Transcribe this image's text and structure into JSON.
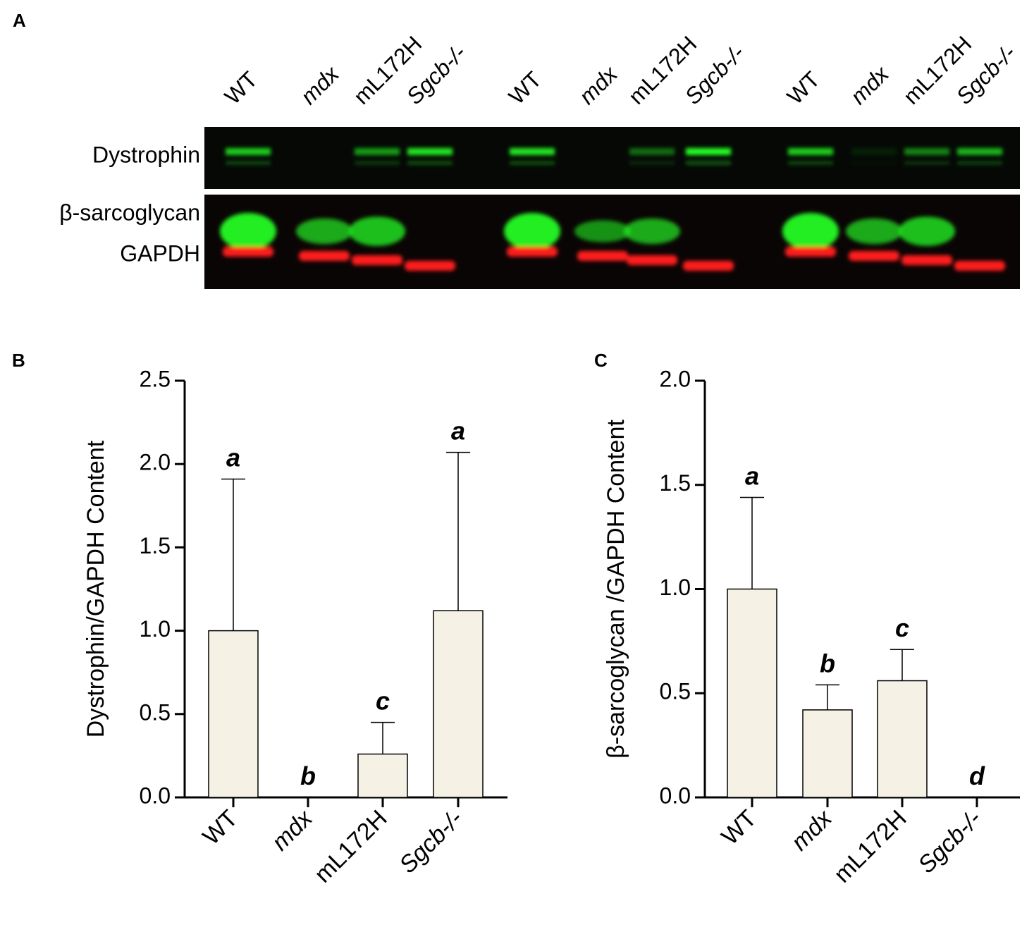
{
  "panel_a": {
    "label": "A",
    "lanes": [
      "WT",
      "mdx",
      "mL172H",
      "Sgcb-/-",
      "WT",
      "mdx",
      "mL172H",
      "Sgcb-/-",
      "WT",
      "mdx",
      "mL172H",
      "Sgcb-/-"
    ],
    "rows": [
      "Dystrophin",
      "β-sarcoglycan",
      "GAPDH"
    ]
  },
  "chart_data": [
    {
      "type": "bar",
      "panel_label": "B",
      "y_label": "Dystrophin/GAPDH Content",
      "categories": [
        "WT",
        "mdx",
        "mL172H",
        "Sgcb-/-"
      ],
      "values": [
        1.0,
        0.0,
        0.26,
        1.12
      ],
      "errors": [
        0.91,
        0.0,
        0.19,
        0.95
      ],
      "annotations": [
        "a",
        "b",
        "c",
        "a"
      ],
      "color": "#f5f1e4",
      "ylim": [
        0,
        2.5
      ],
      "yticks": [
        {
          "value": 0,
          "label": "0.0"
        },
        0.5,
        {
          "value": 1,
          "label": "1.0"
        },
        1.5,
        {
          "value": 2,
          "label": "2.0"
        },
        2.5
      ]
    },
    {
      "type": "bar",
      "panel_label": "C",
      "y_label": "β-sarcoglycan /GAPDH Content",
      "categories": [
        "WT",
        "mdx",
        "mL172H",
        "Sgcb-/-"
      ],
      "values": [
        1.0,
        0.42,
        0.56,
        0.0
      ],
      "errors": [
        0.44,
        0.12,
        0.15,
        0.0
      ],
      "annotations": [
        "a",
        "b",
        "c",
        "d"
      ],
      "color": "#f5f1e4",
      "ylim": [
        0,
        2
      ],
      "yticks": [
        {
          "value": 0,
          "label": "0.0"
        },
        0.5,
        {
          "value": 1,
          "label": "1.0"
        },
        1.5,
        {
          "value": 2,
          "label": "2.0"
        }
      ]
    }
  ]
}
